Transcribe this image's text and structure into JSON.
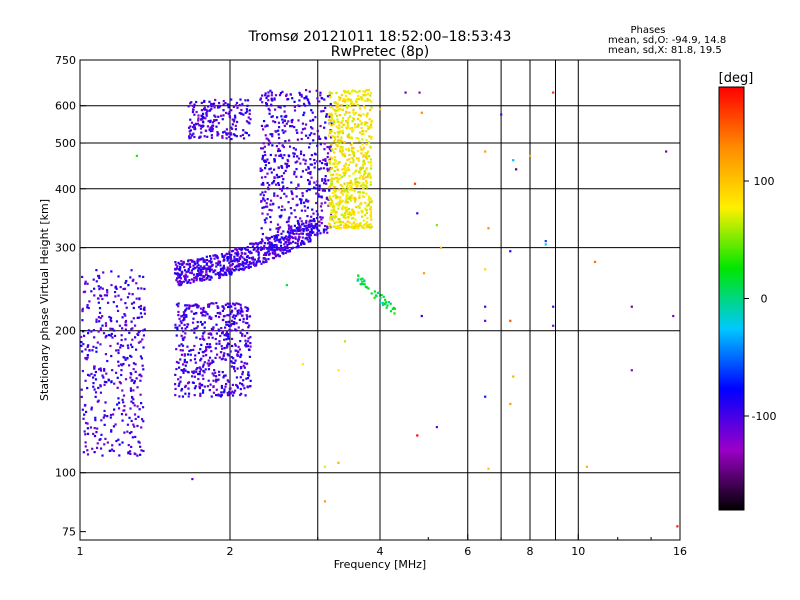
{
  "chart_data": {
    "type": "scatter",
    "title": "Tromsø 20121011 18:52:00–18:53:43",
    "subtitle": "RwPretec (8p)",
    "xlabel": "Frequency [MHz]",
    "ylabel": "Stationary phase Virtual Height [km]",
    "x_scale": "log",
    "y_scale": "log",
    "xlim": [
      1,
      16
    ],
    "ylim": [
      72,
      750
    ],
    "x_ticks": [
      1,
      2,
      4,
      6,
      8,
      10,
      16
    ],
    "x_tick_labels": [
      "1",
      "2",
      "4",
      "6",
      "8",
      "10",
      "16"
    ],
    "y_ticks": [
      75,
      100,
      200,
      300,
      400,
      500,
      600,
      750
    ],
    "y_tick_labels": [
      "75",
      "100",
      "200",
      "300",
      "400",
      "500",
      "600",
      "750"
    ],
    "x_gridlines": [
      2,
      3,
      4,
      6,
      7,
      8,
      9,
      10
    ],
    "y_gridlines": [
      100,
      200,
      300,
      400,
      500,
      600
    ],
    "grid": true,
    "stats": {
      "heading": "Phases",
      "line_o": "mean, sd,O: -94.9, 14.8",
      "line_x": "mean, sd,X:  81.8, 19.5"
    },
    "colorbar": {
      "label": "[deg]",
      "range": [
        -180,
        180
      ],
      "ticks": [
        100,
        0,
        -100
      ],
      "tick_labels": [
        "100",
        "0",
        "-100"
      ],
      "stops": [
        "#000000",
        "#9b00c8",
        "#0000ff",
        "#00c8ff",
        "#00e600",
        "#fff000",
        "#ff8c00",
        "#ff0000"
      ]
    },
    "clusters": [
      {
        "name": "o-trace-lower",
        "x_range": [
          1.0,
          1.35
        ],
        "y_range": [
          108,
          270
        ],
        "phase": -100,
        "count": 420
      },
      {
        "name": "o-trace-f1",
        "x_range": [
          1.55,
          2.2
        ],
        "y_range": [
          145,
          230
        ],
        "phase": -100,
        "count": 520
      },
      {
        "name": "o-trace-f2",
        "x_range": [
          1.55,
          3.0
        ],
        "y_range": [
          260,
          340
        ],
        "phase": -100,
        "count": 650
      },
      {
        "name": "o-trace-upper",
        "x_range": [
          2.3,
          3.2
        ],
        "y_range": [
          320,
          650
        ],
        "phase": -100,
        "count": 520
      },
      {
        "name": "o-trace-top",
        "x_range": [
          1.65,
          2.2
        ],
        "y_range": [
          510,
          620
        ],
        "phase": -100,
        "count": 200
      },
      {
        "name": "x-trace",
        "x_range": [
          3.05,
          3.85
        ],
        "y_range": [
          320,
          650
        ],
        "phase": 80,
        "count": 700
      },
      {
        "name": "x-trace-tail",
        "x_range": [
          3.6,
          4.3
        ],
        "y_range": [
          220,
          260
        ],
        "phase": 10,
        "count": 40
      }
    ],
    "scattered_points": [
      {
        "x": 1.3,
        "y": 470,
        "phase": 30
      },
      {
        "x": 1.25,
        "y": 250,
        "phase": -80
      },
      {
        "x": 1.68,
        "y": 97,
        "phase": -110
      },
      {
        "x": 2.6,
        "y": 250,
        "phase": 10
      },
      {
        "x": 2.8,
        "y": 170,
        "phase": 80
      },
      {
        "x": 3.4,
        "y": 190,
        "phase": 60
      },
      {
        "x": 3.3,
        "y": 165,
        "phase": 80
      },
      {
        "x": 3.9,
        "y": 235,
        "phase": 30
      },
      {
        "x": 4.0,
        "y": 590,
        "phase": 110
      },
      {
        "x": 4.5,
        "y": 640,
        "phase": -110
      },
      {
        "x": 4.8,
        "y": 640,
        "phase": -130
      },
      {
        "x": 4.85,
        "y": 580,
        "phase": 130
      },
      {
        "x": 4.7,
        "y": 410,
        "phase": 160
      },
      {
        "x": 4.75,
        "y": 355,
        "phase": -100
      },
      {
        "x": 5.2,
        "y": 335,
        "phase": 50
      },
      {
        "x": 4.9,
        "y": 265,
        "phase": 120
      },
      {
        "x": 4.85,
        "y": 215,
        "phase": -90
      },
      {
        "x": 5.3,
        "y": 300,
        "phase": 110
      },
      {
        "x": 5.2,
        "y": 125,
        "phase": -110
      },
      {
        "x": 4.75,
        "y": 120,
        "phase": 180
      },
      {
        "x": 3.1,
        "y": 103,
        "phase": 70
      },
      {
        "x": 3.3,
        "y": 105,
        "phase": 110
      },
      {
        "x": 3.1,
        "y": 87,
        "phase": 120
      },
      {
        "x": 6.5,
        "y": 480,
        "phase": 120
      },
      {
        "x": 6.6,
        "y": 330,
        "phase": 130
      },
      {
        "x": 6.5,
        "y": 270,
        "phase": 90
      },
      {
        "x": 6.5,
        "y": 225,
        "phase": -100
      },
      {
        "x": 6.5,
        "y": 210,
        "phase": -110
      },
      {
        "x": 6.5,
        "y": 145,
        "phase": -70
      },
      {
        "x": 6.6,
        "y": 102,
        "phase": 100
      },
      {
        "x": 7.0,
        "y": 575,
        "phase": -100
      },
      {
        "x": 7.4,
        "y": 460,
        "phase": -30
      },
      {
        "x": 7.5,
        "y": 440,
        "phase": -150
      },
      {
        "x": 7.3,
        "y": 295,
        "phase": -90
      },
      {
        "x": 7.3,
        "y": 210,
        "phase": 150
      },
      {
        "x": 7.4,
        "y": 160,
        "phase": 110
      },
      {
        "x": 7.3,
        "y": 140,
        "phase": 120
      },
      {
        "x": 8.0,
        "y": 470,
        "phase": 110
      },
      {
        "x": 8.6,
        "y": 310,
        "phase": -60
      },
      {
        "x": 8.6,
        "y": 305,
        "phase": -20
      },
      {
        "x": 8.9,
        "y": 640,
        "phase": 160
      },
      {
        "x": 8.9,
        "y": 225,
        "phase": -100
      },
      {
        "x": 8.9,
        "y": 205,
        "phase": -120
      },
      {
        "x": 10.4,
        "y": 103,
        "phase": 110
      },
      {
        "x": 10.8,
        "y": 280,
        "phase": 140
      },
      {
        "x": 12.8,
        "y": 225,
        "phase": -140
      },
      {
        "x": 12.8,
        "y": 165,
        "phase": -130
      },
      {
        "x": 15.0,
        "y": 480,
        "phase": -140
      },
      {
        "x": 15.5,
        "y": 215,
        "phase": -120
      },
      {
        "x": 15.8,
        "y": 77,
        "phase": 170
      }
    ]
  }
}
